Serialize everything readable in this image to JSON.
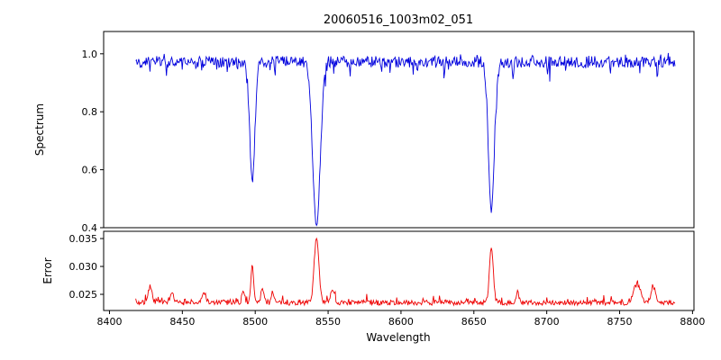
{
  "title": "20060516_1003m02_051",
  "chart_data": {
    "type": "line",
    "title": "20060516_1003m02_051",
    "xlabel": "Wavelength",
    "xlim": [
      8396,
      8801
    ],
    "x_data_range": [
      8418,
      8788
    ],
    "x_ticks": [
      8400,
      8450,
      8500,
      8550,
      8600,
      8650,
      8700,
      8750,
      8800
    ],
    "x_tick_labels": [
      "8400",
      "8450",
      "8500",
      "8550",
      "8600",
      "8650",
      "8700",
      "8750",
      "8800"
    ],
    "grid": false,
    "legend": false,
    "panels": [
      {
        "name": "spectrum",
        "ylabel": "Spectrum",
        "color": "#0000dd",
        "ylim": [
          0.4,
          1.077
        ],
        "y_ticks": [
          0.4,
          0.6,
          0.8,
          1.0
        ],
        "y_tick_labels": [
          "0.4",
          "0.6",
          "0.8",
          "1.0"
        ],
        "continuum": 0.972,
        "noise_amplitude": 0.02,
        "absorption_lines": [
          {
            "center": 8498,
            "min": 0.57,
            "sigma": 1.8
          },
          {
            "center": 8542,
            "min": 0.41,
            "sigma": 2.6
          },
          {
            "center": 8662,
            "min": 0.46,
            "sigma": 2.0
          }
        ]
      },
      {
        "name": "error",
        "ylabel": "Error",
        "color": "#ee0000",
        "ylim": [
          0.0221,
          0.0363
        ],
        "y_ticks": [
          0.025,
          0.03,
          0.035
        ],
        "y_tick_labels": [
          "0.025",
          "0.030",
          "0.035"
        ],
        "baseline": 0.0235,
        "noise_amplitude": 0.00045,
        "peaks": [
          {
            "center": 8428,
            "value": 0.0263,
            "sigma": 1.3
          },
          {
            "center": 8443,
            "value": 0.025,
            "sigma": 1.0
          },
          {
            "center": 8465,
            "value": 0.0254,
            "sigma": 1.2
          },
          {
            "center": 8492,
            "value": 0.0257,
            "sigma": 0.9
          },
          {
            "center": 8498,
            "value": 0.0303,
            "sigma": 0.9
          },
          {
            "center": 8505,
            "value": 0.0262,
            "sigma": 1.0
          },
          {
            "center": 8512,
            "value": 0.0256,
            "sigma": 0.9
          },
          {
            "center": 8542,
            "value": 0.0351,
            "sigma": 1.6
          },
          {
            "center": 8553,
            "value": 0.0257,
            "sigma": 1.2
          },
          {
            "center": 8662,
            "value": 0.0333,
            "sigma": 1.3
          },
          {
            "center": 8680,
            "value": 0.0254,
            "sigma": 1.0
          },
          {
            "center": 8762,
            "value": 0.0268,
            "sigma": 2.5
          },
          {
            "center": 8773,
            "value": 0.0265,
            "sigma": 1.5
          }
        ]
      }
    ]
  }
}
